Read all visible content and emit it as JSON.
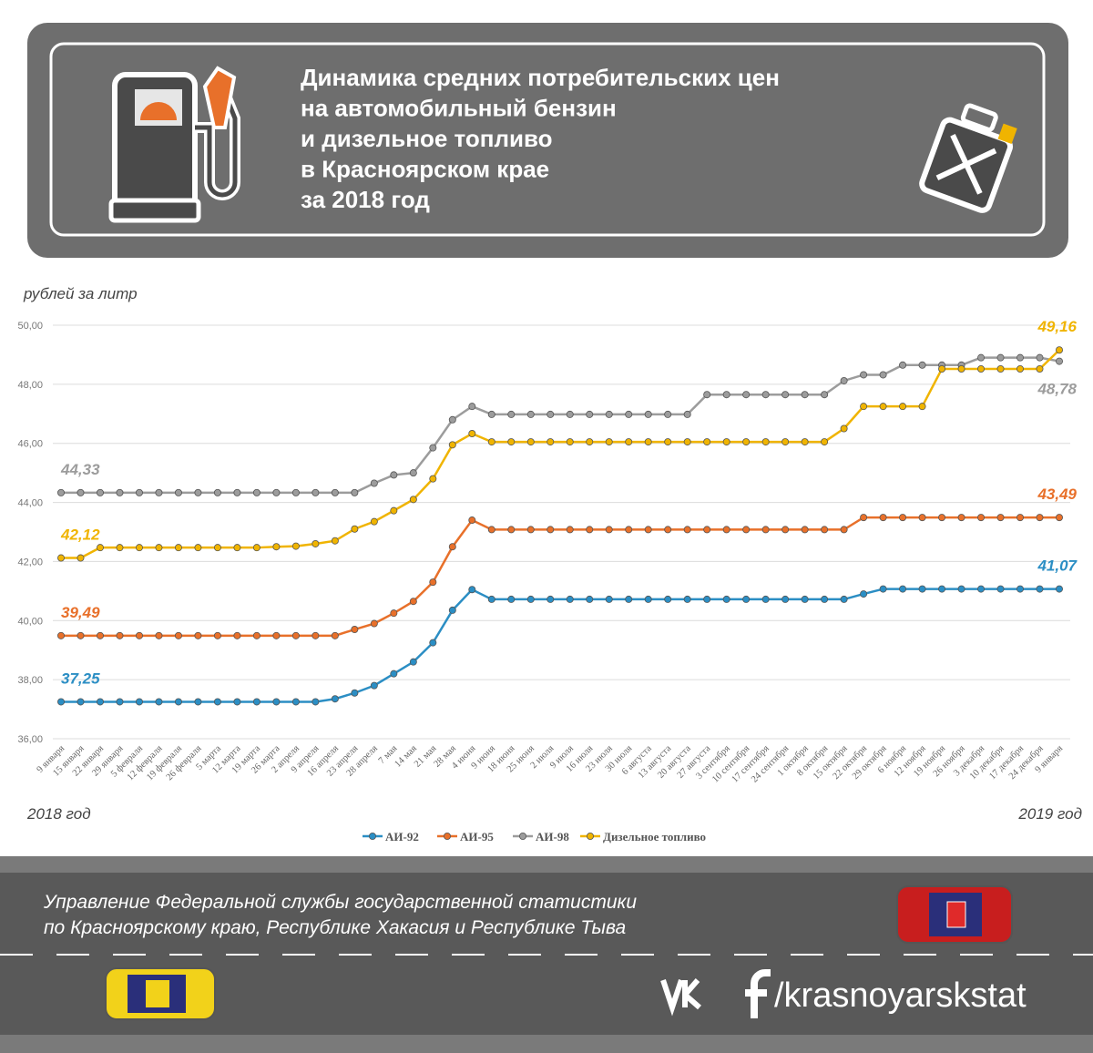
{
  "header": {
    "title_lines": [
      "Динамика средних потребительских цен",
      "на автомобильный бензин",
      "и дизельное топливо",
      "в Красноярском крае",
      "за 2018 год"
    ]
  },
  "chart_data": {
    "type": "line",
    "y_label": "рублей за литр",
    "x_start_label": "2018 год",
    "x_end_label": "2019 год",
    "categories": [
      "9 января",
      "15 января",
      "22 января",
      "29 января",
      "5 февраля",
      "12 февраля",
      "19 февраля",
      "26 февраля",
      "5 марта",
      "12 марта",
      "19 марта",
      "26 марта",
      "2 апреля",
      "9 апреля",
      "16 апреля",
      "23 апреля",
      "28 апреля",
      "7 мая",
      "14 мая",
      "21 мая",
      "28 мая",
      "4 июня",
      "9 июня",
      "18 июня",
      "25 июня",
      "2 июля",
      "9 июля",
      "16 июля",
      "23 июля",
      "30 июля",
      "6 августа",
      "13 августа",
      "20 августа",
      "27 августа",
      "3 сентября",
      "10 сентября",
      "17 сентября",
      "24 сентября",
      "1 октября",
      "8 октября",
      "15 октября",
      "22 октября",
      "29 октября",
      "6 ноября",
      "12 ноября",
      "19 ноября",
      "26 ноября",
      "3 декабря",
      "10 декабря",
      "17 декабря",
      "24 декабря",
      "9 января"
    ],
    "ylim": [
      36,
      50
    ],
    "yticks": [
      {
        "value": 36,
        "label": "36,00"
      },
      {
        "value": 38,
        "label": "38,00"
      },
      {
        "value": 40,
        "label": "40,00"
      },
      {
        "value": 42,
        "label": "42,00"
      },
      {
        "value": 44,
        "label": "44,00"
      },
      {
        "value": 46,
        "label": "46,00"
      },
      {
        "value": 48,
        "label": "48,00"
      },
      {
        "value": 50,
        "label": "50,00"
      }
    ],
    "grid": true,
    "legend": "bottom",
    "series": [
      {
        "name": "АИ-92",
        "color": "#2b8ec4",
        "values": [
          37.25,
          37.25,
          37.25,
          37.25,
          37.25,
          37.25,
          37.25,
          37.25,
          37.25,
          37.25,
          37.25,
          37.25,
          37.25,
          37.25,
          37.35,
          37.55,
          37.8,
          38.2,
          38.6,
          39.25,
          40.35,
          41.05,
          40.72,
          40.72,
          40.72,
          40.72,
          40.72,
          40.72,
          40.72,
          40.72,
          40.72,
          40.72,
          40.72,
          40.72,
          40.72,
          40.72,
          40.72,
          40.72,
          40.72,
          40.72,
          40.72,
          40.9,
          41.07,
          41.07,
          41.07,
          41.07,
          41.07,
          41.07,
          41.07,
          41.07,
          41.07,
          41.07
        ],
        "value_labels": [
          "37,25",
          null,
          null,
          null,
          null,
          null,
          null,
          null,
          null,
          null,
          null,
          null,
          null,
          null,
          null,
          null,
          null,
          null,
          null,
          null,
          null,
          null,
          null,
          null,
          null,
          null,
          null,
          null,
          null,
          null,
          null,
          null,
          null,
          null,
          null,
          null,
          null,
          null,
          null,
          null,
          null,
          null,
          null,
          null,
          null,
          null,
          null,
          null,
          null,
          null,
          null,
          "41,07"
        ]
      },
      {
        "name": "АИ-95",
        "color": "#e8702a",
        "values": [
          39.49,
          39.49,
          39.49,
          39.49,
          39.49,
          39.49,
          39.49,
          39.49,
          39.49,
          39.49,
          39.49,
          39.49,
          39.49,
          39.49,
          39.49,
          39.7,
          39.9,
          40.25,
          40.65,
          41.3,
          42.5,
          43.4,
          43.08,
          43.08,
          43.08,
          43.08,
          43.08,
          43.08,
          43.08,
          43.08,
          43.08,
          43.08,
          43.08,
          43.08,
          43.08,
          43.08,
          43.08,
          43.08,
          43.08,
          43.08,
          43.08,
          43.49,
          43.49,
          43.49,
          43.49,
          43.49,
          43.49,
          43.49,
          43.49,
          43.49,
          43.49,
          43.49
        ],
        "value_labels": [
          "39,49",
          null,
          null,
          null,
          null,
          null,
          null,
          null,
          null,
          null,
          null,
          null,
          null,
          null,
          null,
          null,
          null,
          null,
          null,
          null,
          null,
          null,
          null,
          null,
          null,
          null,
          null,
          null,
          null,
          null,
          null,
          null,
          null,
          null,
          null,
          null,
          null,
          null,
          null,
          null,
          null,
          null,
          null,
          null,
          null,
          null,
          null,
          null,
          null,
          null,
          null,
          "43,49"
        ]
      },
      {
        "name": "АИ-98",
        "color": "#9c9c9c",
        "values": [
          44.33,
          44.33,
          44.33,
          44.33,
          44.33,
          44.33,
          44.33,
          44.33,
          44.33,
          44.33,
          44.33,
          44.33,
          44.33,
          44.33,
          44.33,
          44.33,
          44.65,
          44.93,
          45.0,
          45.85,
          46.8,
          47.25,
          46.98,
          46.98,
          46.98,
          46.98,
          46.98,
          46.98,
          46.98,
          46.98,
          46.98,
          46.98,
          46.98,
          47.65,
          47.65,
          47.65,
          47.65,
          47.65,
          47.65,
          47.65,
          48.12,
          48.32,
          48.32,
          48.65,
          48.65,
          48.65,
          48.65,
          48.9,
          48.9,
          48.9,
          48.9,
          48.78
        ],
        "value_labels": [
          "44,33",
          null,
          null,
          null,
          null,
          null,
          null,
          null,
          null,
          null,
          null,
          null,
          null,
          null,
          null,
          null,
          null,
          null,
          null,
          null,
          null,
          null,
          null,
          null,
          null,
          null,
          null,
          null,
          null,
          null,
          null,
          null,
          null,
          null,
          null,
          null,
          null,
          null,
          null,
          null,
          null,
          null,
          null,
          null,
          null,
          null,
          null,
          null,
          null,
          null,
          null,
          "48,78"
        ]
      },
      {
        "name": "Дизельное топливо",
        "color": "#f0b400",
        "values": [
          42.12,
          42.12,
          42.47,
          42.47,
          42.47,
          42.47,
          42.47,
          42.47,
          42.47,
          42.47,
          42.47,
          42.5,
          42.52,
          42.6,
          42.7,
          43.1,
          43.35,
          43.72,
          44.1,
          44.8,
          45.95,
          46.33,
          46.05,
          46.05,
          46.05,
          46.05,
          46.05,
          46.05,
          46.05,
          46.05,
          46.05,
          46.05,
          46.05,
          46.05,
          46.05,
          46.05,
          46.05,
          46.05,
          46.05,
          46.05,
          46.5,
          47.25,
          47.25,
          47.25,
          47.25,
          48.52,
          48.52,
          48.52,
          48.52,
          48.52,
          48.52,
          49.16
        ],
        "value_labels": [
          "42,12",
          null,
          null,
          null,
          null,
          null,
          null,
          null,
          null,
          null,
          null,
          null,
          null,
          null,
          null,
          null,
          null,
          null,
          null,
          null,
          null,
          null,
          null,
          null,
          null,
          null,
          null,
          null,
          null,
          null,
          null,
          null,
          null,
          null,
          null,
          null,
          null,
          null,
          null,
          null,
          null,
          null,
          null,
          null,
          null,
          null,
          null,
          null,
          null,
          null,
          null,
          "49,16"
        ]
      }
    ]
  },
  "footer": {
    "org_lines": [
      "Управление Федеральной службы государственной статистики",
      "по Красноярскому краю, Республике Хакасия и Республике Тыва"
    ],
    "social": "/krasnoyarskstat"
  }
}
